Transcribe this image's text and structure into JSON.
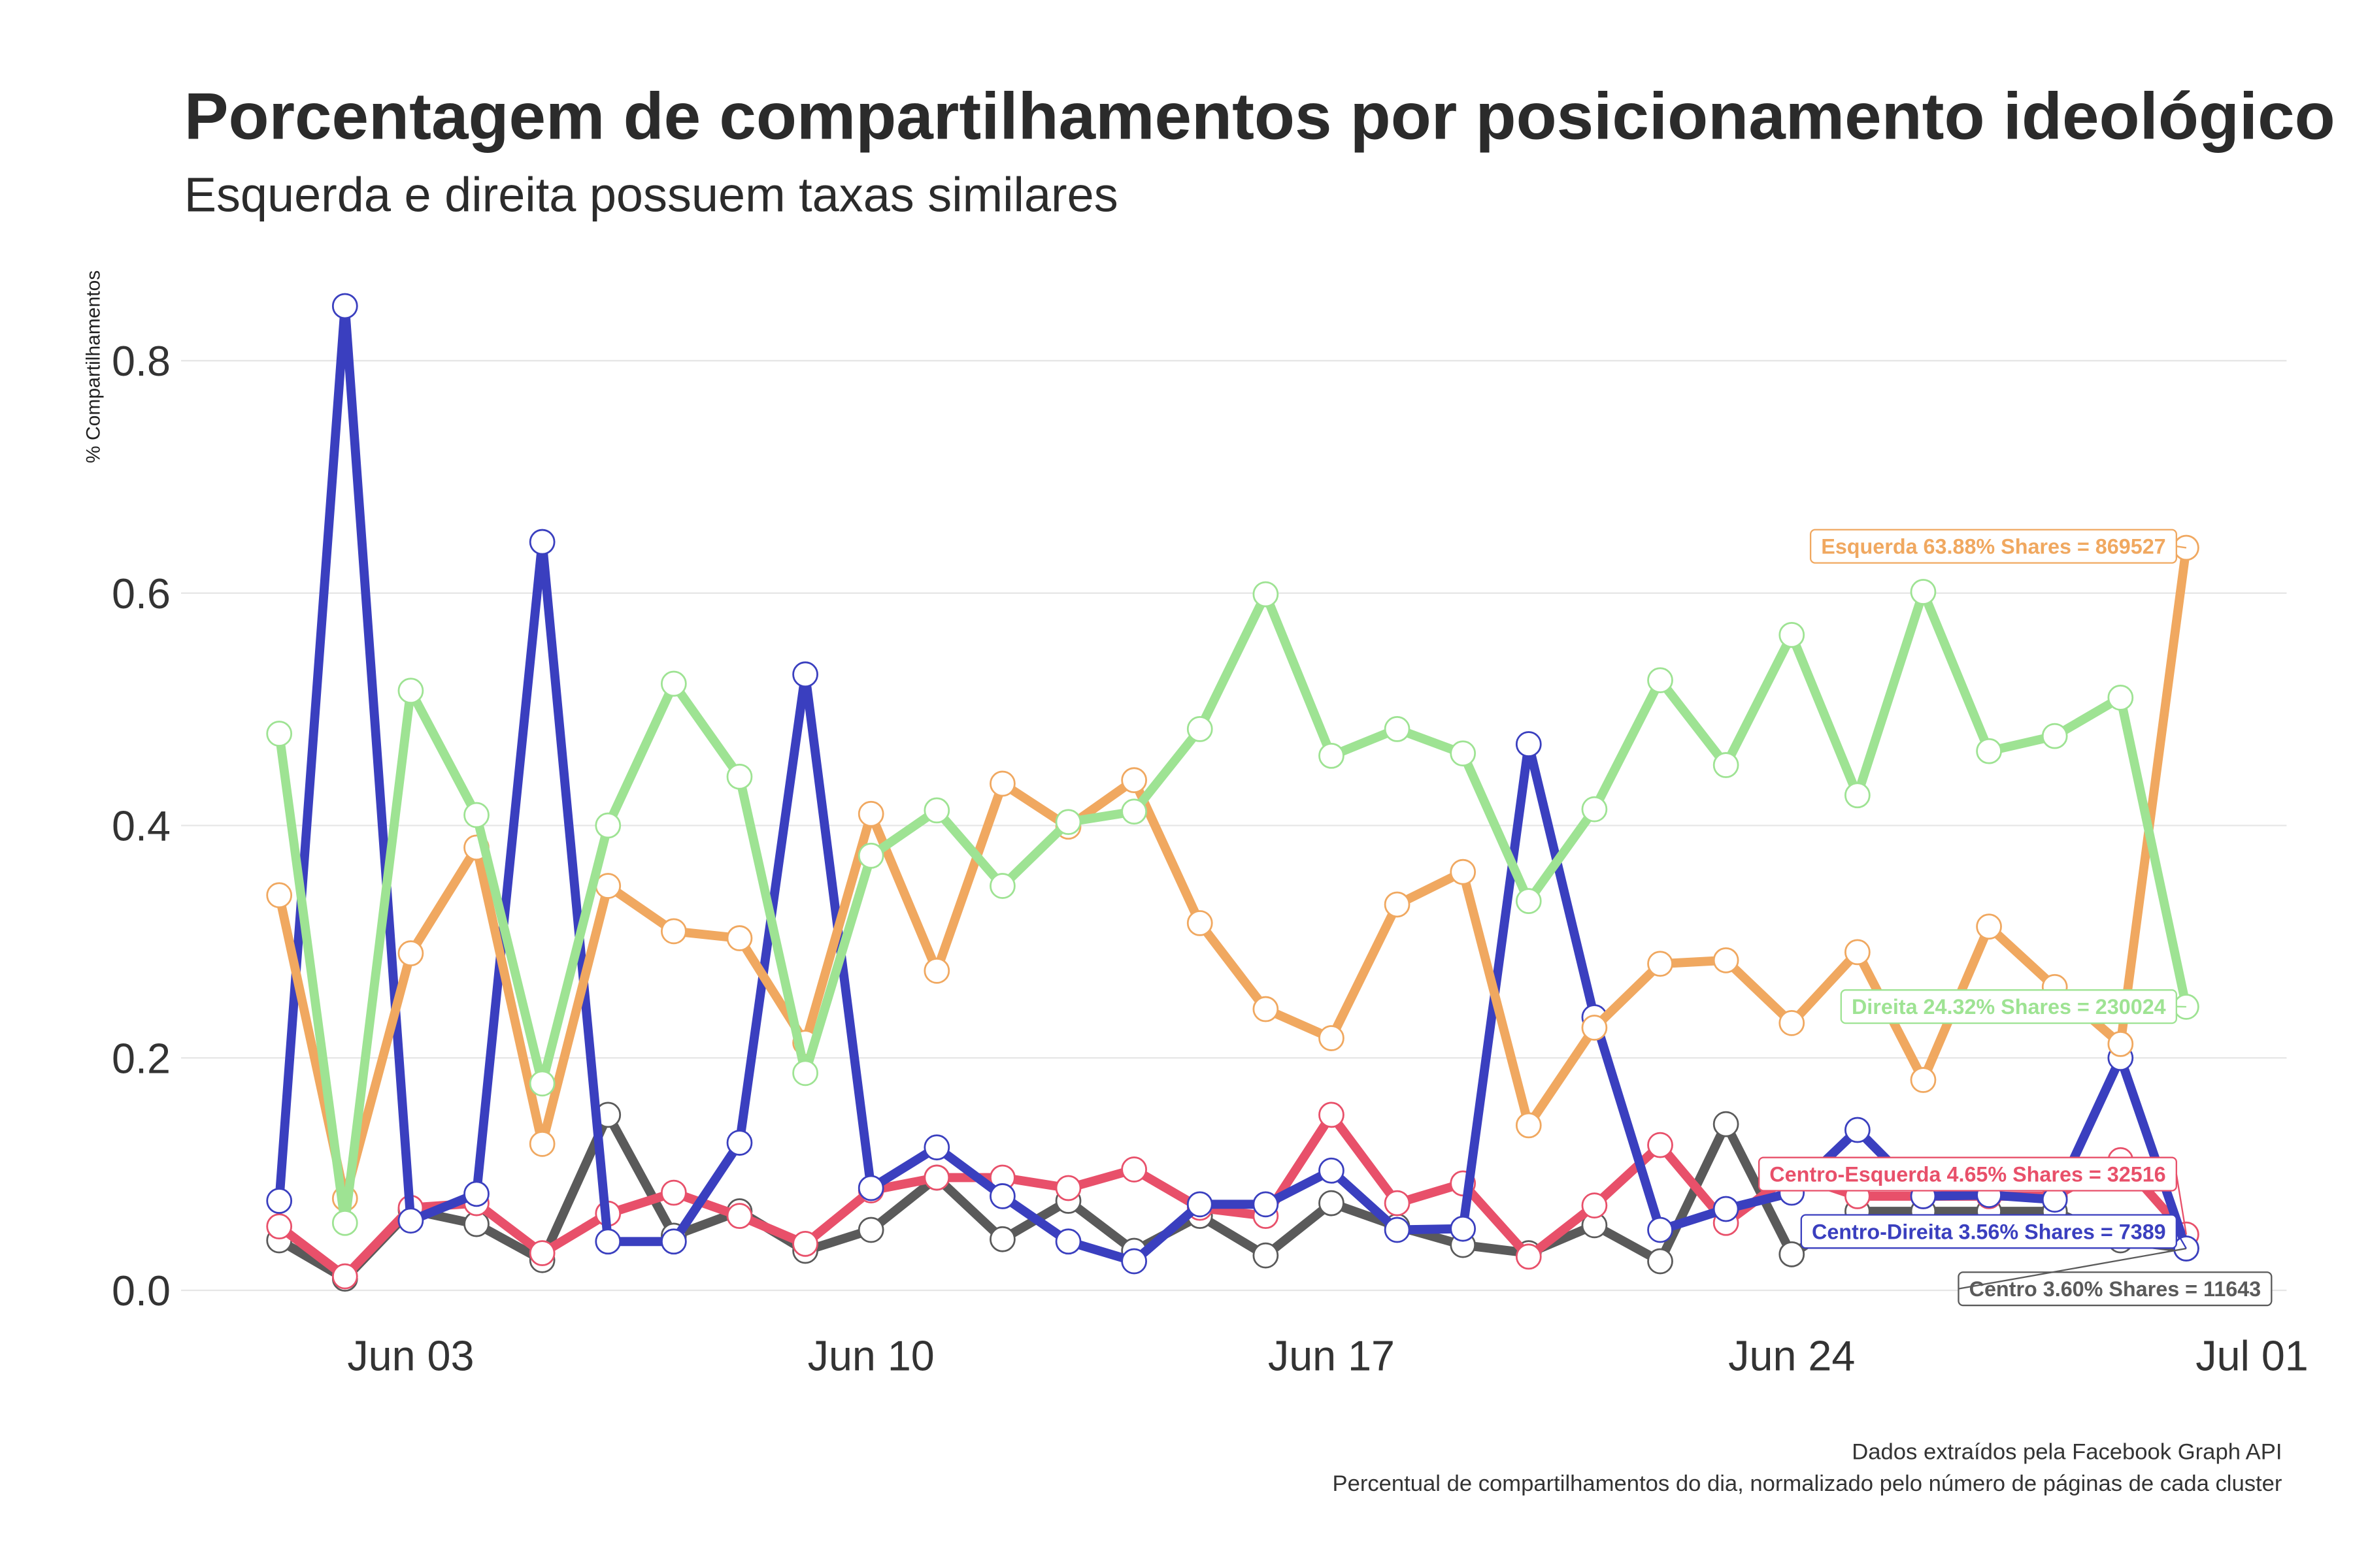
{
  "chart_data": {
    "type": "line",
    "title": "Porcentagem de compartilhamentos por posicionamento ideológico",
    "subtitle": "Esquerda e direita possuem taxas similares",
    "y_label": "% Compartilhamentos",
    "caption": [
      "Dados extraídos pela Facebook Graph API",
      "Percentual de compartilhamentos do dia, normalizado pelo número de páginas de cada cluster"
    ],
    "x": [
      "Jun 01",
      "Jun 02",
      "Jun 03",
      "Jun 04",
      "Jun 05",
      "Jun 06",
      "Jun 07",
      "Jun 08",
      "Jun 09",
      "Jun 10",
      "Jun 11",
      "Jun 12",
      "Jun 13",
      "Jun 14",
      "Jun 15",
      "Jun 16",
      "Jun 17",
      "Jun 18",
      "Jun 19",
      "Jun 20",
      "Jun 21",
      "Jun 22",
      "Jun 23",
      "Jun 24",
      "Jun 25",
      "Jun 26",
      "Jun 27",
      "Jun 28",
      "Jun 29",
      "Jun 30"
    ],
    "xticks": [
      "Jun 03",
      "Jun 10",
      "Jun 17",
      "Jun 24",
      "Jul 01"
    ],
    "ylim": [
      -0.02,
      0.88
    ],
    "yticks": [
      {
        "value": 0,
        "label": "0.0"
      },
      0.2,
      0.4,
      0.6,
      0.8
    ],
    "grid": true,
    "series": [
      {
        "name": "Centro",
        "color": "#5a5a5a",
        "label": "Centro 3.60% Shares = 11643",
        "values": [
          0.043,
          0.01,
          0.069,
          0.057,
          0.026,
          0.151,
          0.047,
          0.068,
          0.034,
          0.052,
          0.097,
          0.044,
          0.077,
          0.034,
          0.064,
          0.03,
          0.075,
          0.055,
          0.039,
          0.032,
          0.056,
          0.025,
          0.143,
          0.031,
          0.068,
          0.068,
          0.068,
          0.068,
          0.043,
          0.036
        ]
      },
      {
        "name": "Centro-Esquerda",
        "color": "#e8506a",
        "label": "Centro-Esquerda 4.65% Shares = 32516",
        "values": [
          0.055,
          0.012,
          0.071,
          0.075,
          0.032,
          0.066,
          0.084,
          0.064,
          0.04,
          0.086,
          0.097,
          0.097,
          0.088,
          0.104,
          0.071,
          0.064,
          0.151,
          0.075,
          0.092,
          0.029,
          0.073,
          0.125,
          0.058,
          0.1,
          0.081,
          0.081,
          0.081,
          0.081,
          0.112,
          0.048
        ]
      },
      {
        "name": "Centro-Direita",
        "color": "#3a3fbf",
        "label": "Centro-Direita 3.56% Shares = 7389",
        "values": [
          0.077,
          0.847,
          0.06,
          0.083,
          0.644,
          0.042,
          0.042,
          0.127,
          0.53,
          0.088,
          0.123,
          0.081,
          0.042,
          0.025,
          0.074,
          0.074,
          0.103,
          0.052,
          0.053,
          0.47,
          0.235,
          0.052,
          0.07,
          0.084,
          0.138,
          0.081,
          0.082,
          0.078,
          0.2,
          0.036
        ]
      },
      {
        "name": "Esquerda",
        "color": "#f0a860",
        "label": "Esquerda 63.88% Shares = 869527",
        "values": [
          0.34,
          0.079,
          0.29,
          0.381,
          0.126,
          0.348,
          0.309,
          0.303,
          0.213,
          0.41,
          0.275,
          0.436,
          0.399,
          0.439,
          0.316,
          0.242,
          0.217,
          0.332,
          0.36,
          0.142,
          0.226,
          0.281,
          0.284,
          0.23,
          0.291,
          0.181,
          0.313,
          0.261,
          0.212,
          0.639
        ]
      },
      {
        "name": "Direita",
        "color": "#9ee393",
        "label": "Direita 24.32% Shares = 230024",
        "values": [
          0.479,
          0.058,
          0.516,
          0.409,
          0.178,
          0.4,
          0.522,
          0.442,
          0.187,
          0.374,
          0.413,
          0.348,
          0.403,
          0.412,
          0.483,
          0.599,
          0.46,
          0.483,
          0.462,
          0.335,
          0.414,
          0.525,
          0.452,
          0.564,
          0.426,
          0.601,
          0.464,
          0.477,
          0.51,
          0.244
        ]
      }
    ]
  }
}
